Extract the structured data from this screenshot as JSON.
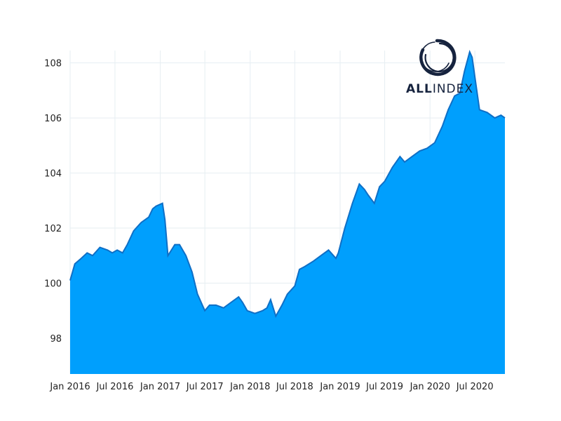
{
  "colors": {
    "area_fill": "#009ffd",
    "area_line": "#0f6fc6",
    "grid": "#e6eef2",
    "logo": "#16233e"
  },
  "logo": {
    "text_bold": "ALL",
    "text_light": "INDEX"
  },
  "chart_data": {
    "type": "area",
    "title": "",
    "xlabel": "",
    "ylabel": "",
    "ylim": [
      96.7,
      108.45
    ],
    "xlim": [
      "2016-01-01",
      "2020-10-31"
    ],
    "yticks": [
      98,
      100,
      102,
      104,
      106,
      108
    ],
    "xticks": [
      "Jan 2016",
      "Jul 2016",
      "Jan 2017",
      "Jul 2017",
      "Jan 2018",
      "Jul 2018",
      "Jan 2019",
      "Jul 2019",
      "Jan 2020",
      "Jul 2020"
    ],
    "grid": true,
    "series": [
      {
        "x": [
          "2016-01-01",
          "2016-01-20",
          "2016-02-15",
          "2016-03-10",
          "2016-04-01",
          "2016-05-01",
          "2016-06-01",
          "2016-06-20",
          "2016-07-10",
          "2016-08-01",
          "2016-08-20",
          "2016-09-15",
          "2016-10-15",
          "2016-11-15",
          "2016-12-01",
          "2016-12-15",
          "2017-01-10",
          "2017-01-20",
          "2017-02-01",
          "2017-03-01",
          "2017-03-20",
          "2017-04-15",
          "2017-05-10",
          "2017-06-01",
          "2017-07-01",
          "2017-07-20",
          "2017-08-15",
          "2017-09-15",
          "2017-10-15",
          "2017-11-15",
          "2017-12-01",
          "2017-12-20",
          "2018-01-20",
          "2018-02-20",
          "2018-03-10",
          "2018-03-25",
          "2018-04-15",
          "2018-05-10",
          "2018-06-01",
          "2018-07-01",
          "2018-07-20",
          "2018-08-10",
          "2018-09-15",
          "2018-10-15",
          "2018-11-15",
          "2018-12-15",
          "2018-12-25",
          "2019-01-20",
          "2019-02-20",
          "2019-03-20",
          "2019-04-10",
          "2019-04-25",
          "2019-05-20",
          "2019-06-10",
          "2019-07-01",
          "2019-08-01",
          "2019-09-01",
          "2019-09-20",
          "2019-10-20",
          "2019-11-20",
          "2019-12-20",
          "2020-01-20",
          "2020-02-20",
          "2020-03-15",
          "2020-04-10",
          "2020-05-01",
          "2020-05-20",
          "2020-06-10",
          "2020-06-20",
          "2020-07-01",
          "2020-07-20",
          "2020-08-20",
          "2020-09-20",
          "2020-10-15",
          "2020-10-31"
        ],
        "values": [
          100.1,
          100.7,
          100.9,
          101.1,
          101.0,
          101.3,
          101.2,
          101.1,
          101.2,
          101.1,
          101.4,
          101.9,
          102.2,
          102.4,
          102.7,
          102.8,
          102.9,
          102.3,
          101.0,
          101.4,
          101.4,
          101.0,
          100.4,
          99.6,
          99.0,
          99.2,
          99.2,
          99.1,
          99.3,
          99.5,
          99.3,
          99.0,
          98.9,
          99.0,
          99.1,
          99.4,
          98.8,
          99.2,
          99.6,
          99.9,
          100.5,
          100.6,
          100.8,
          101.0,
          101.2,
          100.9,
          101.1,
          102.0,
          102.9,
          103.6,
          103.4,
          103.2,
          102.9,
          103.5,
          103.7,
          104.2,
          104.6,
          104.4,
          104.6,
          104.8,
          104.9,
          105.1,
          105.7,
          106.3,
          106.8,
          106.9,
          107.7,
          108.4,
          108.2,
          107.5,
          106.3,
          106.2,
          106.0,
          106.1,
          106.0
        ]
      }
    ]
  }
}
